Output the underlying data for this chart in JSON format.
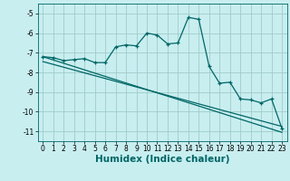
{
  "xlabel": "Humidex (Indice chaleur)",
  "bg_color": "#c8eef0",
  "grid_color": "#a0ccc8",
  "line_color": "#006666",
  "xlim": [
    -0.5,
    23.5
  ],
  "ylim": [
    -11.5,
    -4.5
  ],
  "yticks": [
    -11,
    -10,
    -9,
    -8,
    -7,
    -6,
    -5
  ],
  "xticks": [
    0,
    1,
    2,
    3,
    4,
    5,
    6,
    7,
    8,
    9,
    10,
    11,
    12,
    13,
    14,
    15,
    16,
    17,
    18,
    19,
    20,
    21,
    22,
    23
  ],
  "curve1_x": [
    0,
    1,
    2,
    3,
    4,
    5,
    6,
    7,
    8,
    9,
    10,
    11,
    12,
    13,
    14,
    15,
    16,
    17,
    18,
    19,
    20,
    21,
    22,
    23
  ],
  "curve1_y": [
    -7.2,
    -7.25,
    -7.4,
    -7.35,
    -7.3,
    -7.5,
    -7.5,
    -6.7,
    -6.6,
    -6.65,
    -6.0,
    -6.1,
    -6.55,
    -6.5,
    -5.2,
    -5.3,
    -7.7,
    -8.55,
    -8.5,
    -9.35,
    -9.4,
    -9.55,
    -9.35,
    -10.85
  ],
  "curve2_x": [
    0,
    23
  ],
  "curve2_y": [
    -7.2,
    -11.05
  ],
  "curve3_x": [
    0,
    23
  ],
  "curve3_y": [
    -7.45,
    -10.75
  ],
  "tick_fontsize": 5.5,
  "label_fontsize": 7.5
}
